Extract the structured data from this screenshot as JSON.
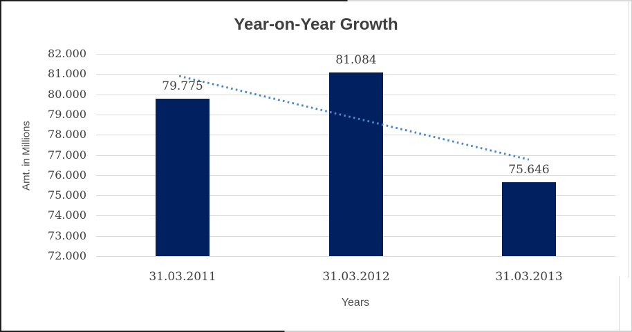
{
  "chart_data": {
    "type": "bar",
    "title": "Year-on-Year Growth",
    "xlabel": "Years",
    "ylabel": "Amt. in Millions",
    "categories": [
      "31.03.2011",
      "31.03.2012",
      "31.03.2013"
    ],
    "series": [
      {
        "values": [
          79775,
          81084,
          75646
        ],
        "data_labels": [
          "79.775",
          "81.084",
          "75.646"
        ],
        "color": "#002060"
      }
    ],
    "ylim": [
      72000,
      82000
    ],
    "yticks": [
      {
        "value": 82000,
        "label": "82.000"
      },
      {
        "value": 81000,
        "label": "81.000"
      },
      {
        "value": 80000,
        "label": "80.000"
      },
      {
        "value": 79000,
        "label": "79.000"
      },
      {
        "value": 78000,
        "label": "78.000"
      },
      {
        "value": 77000,
        "label": "77.000"
      },
      {
        "value": 76000,
        "label": "76.000"
      },
      {
        "value": 75000,
        "label": "75.000"
      },
      {
        "value": 74000,
        "label": "74.000"
      },
      {
        "value": 73000,
        "label": "73.000"
      },
      {
        "value": 72000,
        "label": "72.000"
      }
    ],
    "grid": true,
    "legend": "none",
    "trendline": {
      "type": "linear",
      "style": "dotted",
      "color": "#4c87c9",
      "start": 80900,
      "end": 76771
    }
  },
  "colors": {
    "bar": "#002060",
    "trendline": "#4c87c9",
    "gridline": "#d9d9d9",
    "tick_text": "#404040",
    "axis_title_text": "#4d4d4d",
    "title_text": "#3f3f3f"
  }
}
